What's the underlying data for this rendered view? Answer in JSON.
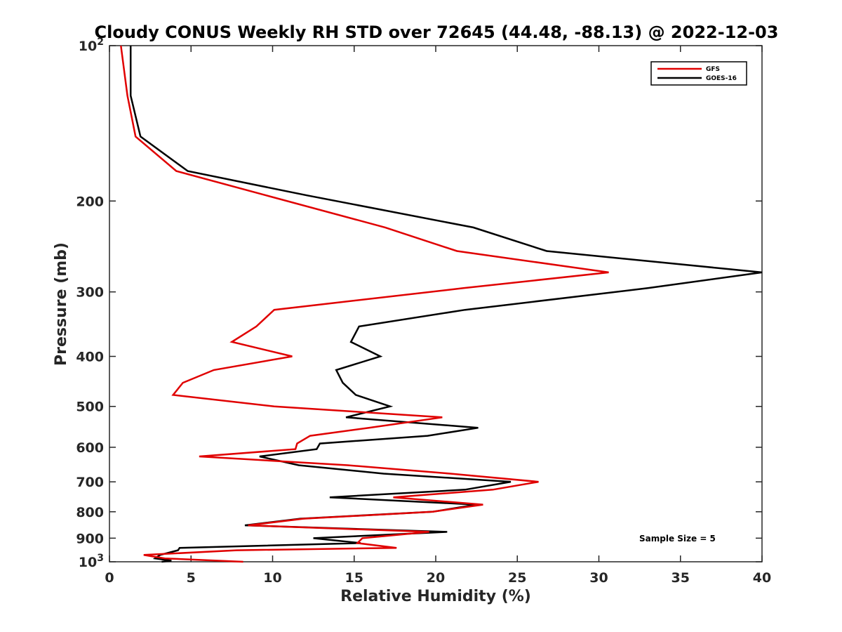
{
  "chart_data": {
    "type": "line",
    "title": "Cloudy CONUS Weekly RH STD over 72645 (44.48, -88.13) @ 2022-12-03",
    "xlabel": "Relative Humidity (%)",
    "ylabel": "Pressure (mb)",
    "xlim": [
      0,
      40
    ],
    "ylim": [
      100,
      1000
    ],
    "yscale": "log",
    "y_reversed": true,
    "x_ticks": [
      0,
      5,
      10,
      15,
      20,
      25,
      30,
      35,
      40
    ],
    "x_tick_labels": [
      "0",
      "5",
      "10",
      "15",
      "20",
      "25",
      "30",
      "35",
      "40"
    ],
    "y_ticks": [
      100,
      200,
      300,
      400,
      500,
      600,
      700,
      800,
      900,
      1000
    ],
    "y_tick_labels": [
      "10^2",
      "200",
      "300",
      "400",
      "500",
      "600",
      "700",
      "800",
      "900",
      "10^3"
    ],
    "grid": false,
    "legend_position": "top-right",
    "annotation": "Sample Size = 5",
    "series": [
      {
        "name": "GFS",
        "color": "#e00000",
        "points": [
          [
            0.7,
            100
          ],
          [
            1.1,
            125
          ],
          [
            1.6,
            150
          ],
          [
            4.1,
            175
          ],
          [
            9.6,
            195
          ],
          [
            16.9,
            225
          ],
          [
            21.3,
            250
          ],
          [
            30.6,
            275
          ],
          [
            21.7,
            295
          ],
          [
            10.1,
            325
          ],
          [
            9.0,
            350
          ],
          [
            7.5,
            375
          ],
          [
            11.2,
            400
          ],
          [
            6.4,
            425
          ],
          [
            4.5,
            450
          ],
          [
            3.9,
            475
          ],
          [
            10.1,
            500
          ],
          [
            20.4,
            525
          ],
          [
            15.9,
            550
          ],
          [
            12.3,
            570
          ],
          [
            11.5,
            590
          ],
          [
            11.4,
            605
          ],
          [
            5.5,
            625
          ],
          [
            14.6,
            650
          ],
          [
            20.9,
            675
          ],
          [
            26.3,
            700
          ],
          [
            23.5,
            725
          ],
          [
            17.4,
            750
          ],
          [
            22.9,
            775
          ],
          [
            19.8,
            800
          ],
          [
            11.9,
            825
          ],
          [
            8.5,
            850
          ],
          [
            19.6,
            875
          ],
          [
            15.5,
            900
          ],
          [
            15.2,
            920
          ],
          [
            17.6,
            940
          ],
          [
            7.8,
            950
          ],
          [
            2.1,
            970
          ],
          [
            3.4,
            985
          ],
          [
            8.2,
            1000
          ]
        ]
      },
      {
        "name": "GOES-16",
        "color": "#000000",
        "points": [
          [
            1.3,
            100
          ],
          [
            1.3,
            125
          ],
          [
            1.9,
            150
          ],
          [
            4.8,
            175
          ],
          [
            12.1,
            195
          ],
          [
            22.3,
            225
          ],
          [
            26.8,
            250
          ],
          [
            40.0,
            275
          ],
          [
            33.0,
            295
          ],
          [
            21.8,
            325
          ],
          [
            15.3,
            350
          ],
          [
            14.8,
            375
          ],
          [
            16.6,
            400
          ],
          [
            13.9,
            425
          ],
          [
            14.3,
            450
          ],
          [
            15.1,
            475
          ],
          [
            17.2,
            500
          ],
          [
            14.5,
            525
          ],
          [
            22.6,
            550
          ],
          [
            19.5,
            570
          ],
          [
            12.9,
            590
          ],
          [
            12.7,
            605
          ],
          [
            9.2,
            625
          ],
          [
            11.6,
            650
          ],
          [
            16.8,
            675
          ],
          [
            24.6,
            700
          ],
          [
            21.8,
            725
          ],
          [
            13.5,
            750
          ],
          [
            22.5,
            775
          ],
          [
            19.8,
            800
          ],
          [
            11.7,
            825
          ],
          [
            8.3,
            850
          ],
          [
            20.7,
            875
          ],
          [
            12.5,
            900
          ],
          [
            15.4,
            920
          ],
          [
            4.3,
            940
          ],
          [
            4.2,
            950
          ],
          [
            3.1,
            970
          ],
          [
            2.8,
            985
          ],
          [
            3.8,
            995
          ],
          [
            3.2,
            1000
          ]
        ]
      }
    ]
  }
}
